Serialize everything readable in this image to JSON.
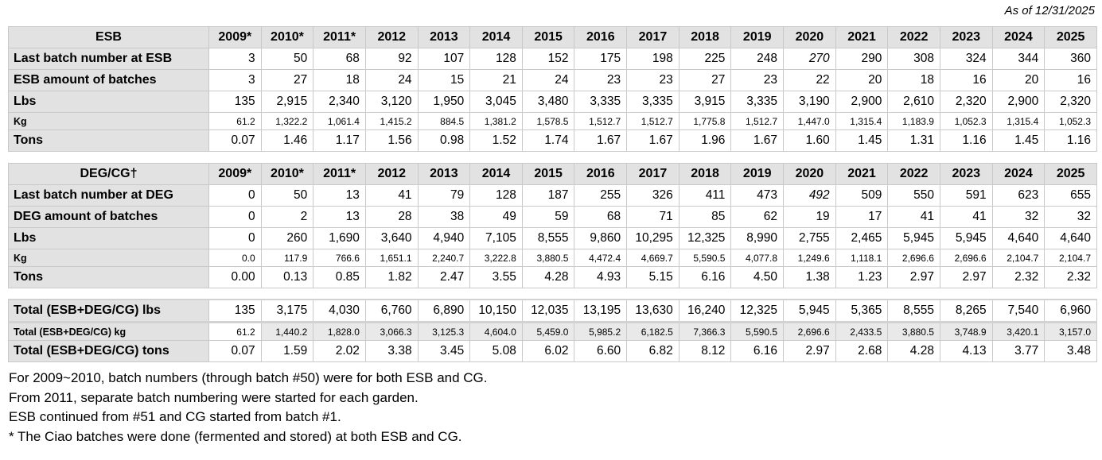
{
  "as_of": "As of 12/31/2025",
  "columns": [
    "2009*",
    "2010*",
    "2011*",
    "2012",
    "2013",
    "2014",
    "2015",
    "2016",
    "2017",
    "2018",
    "2019",
    "2020",
    "2021",
    "2022",
    "2023",
    "2024",
    "2025"
  ],
  "tables": [
    {
      "name": "esb-table",
      "title": "ESB",
      "has_year_header": true,
      "rows": [
        {
          "label": "Last batch number at ESB",
          "italic_col": 11,
          "values": [
            "3",
            "50",
            "68",
            "92",
            "107",
            "128",
            "152",
            "175",
            "198",
            "225",
            "248",
            "270",
            "290",
            "308",
            "324",
            "344",
            "360"
          ]
        },
        {
          "label": "ESB amount of batches",
          "values": [
            "3",
            "27",
            "18",
            "24",
            "15",
            "21",
            "24",
            "23",
            "23",
            "27",
            "23",
            "22",
            "20",
            "18",
            "16",
            "20",
            "16"
          ]
        },
        {
          "label": "Lbs",
          "values": [
            "135",
            "2,915",
            "2,340",
            "3,120",
            "1,950",
            "3,045",
            "3,480",
            "3,335",
            "3,335",
            "3,915",
            "3,335",
            "3,190",
            "2,900",
            "2,610",
            "2,320",
            "2,900",
            "2,320"
          ]
        },
        {
          "label": "Kg",
          "small": true,
          "values": [
            "61.2",
            "1,322.2",
            "1,061.4",
            "1,415.2",
            "884.5",
            "1,381.2",
            "1,578.5",
            "1,512.7",
            "1,512.7",
            "1,775.8",
            "1,512.7",
            "1,447.0",
            "1,315.4",
            "1,183.9",
            "1,052.3",
            "1,315.4",
            "1,052.3"
          ]
        },
        {
          "label": "Tons",
          "values": [
            "0.07",
            "1.46",
            "1.17",
            "1.56",
            "0.98",
            "1.52",
            "1.74",
            "1.67",
            "1.67",
            "1.96",
            "1.67",
            "1.60",
            "1.45",
            "1.31",
            "1.16",
            "1.45",
            "1.16"
          ]
        }
      ]
    },
    {
      "name": "deg-cg-table",
      "title": "DEG/CG†",
      "has_year_header": true,
      "rows": [
        {
          "label": "Last batch number at DEG",
          "italic_col": 11,
          "values": [
            "0",
            "50",
            "13",
            "41",
            "79",
            "128",
            "187",
            "255",
            "326",
            "411",
            "473",
            "492",
            "509",
            "550",
            "591",
            "623",
            "655"
          ]
        },
        {
          "label": "DEG amount of batches",
          "values": [
            "0",
            "2",
            "13",
            "28",
            "38",
            "49",
            "59",
            "68",
            "71",
            "85",
            "62",
            "19",
            "17",
            "41",
            "41",
            "32",
            "32"
          ]
        },
        {
          "label": "Lbs",
          "values": [
            "0",
            "260",
            "1,690",
            "3,640",
            "4,940",
            "7,105",
            "8,555",
            "9,860",
            "10,295",
            "12,325",
            "8,990",
            "2,755",
            "2,465",
            "5,945",
            "5,945",
            "4,640",
            "4,640"
          ]
        },
        {
          "label": "Kg",
          "small": true,
          "values": [
            "0.0",
            "117.9",
            "766.6",
            "1,651.1",
            "2,240.7",
            "3,222.8",
            "3,880.5",
            "4,472.4",
            "4,669.7",
            "5,590.5",
            "4,077.8",
            "1,249.6",
            "1,118.1",
            "2,696.6",
            "2,696.6",
            "2,104.7",
            "2,104.7"
          ]
        },
        {
          "label": "Tons",
          "values": [
            "0.00",
            "0.13",
            "0.85",
            "1.82",
            "2.47",
            "3.55",
            "4.28",
            "4.93",
            "5.15",
            "6.16",
            "4.50",
            "1.38",
            "1.23",
            "2.97",
            "2.97",
            "2.32",
            "2.32"
          ]
        }
      ]
    },
    {
      "name": "total-table",
      "has_year_header": false,
      "rows": [
        {
          "label": "Total (ESB+DEG/CG) lbs",
          "thick_bottom": true,
          "values": [
            "135",
            "3,175",
            "4,030",
            "6,760",
            "6,890",
            "10,150",
            "12,035",
            "13,195",
            "13,630",
            "16,240",
            "12,325",
            "5,945",
            "5,365",
            "8,555",
            "8,265",
            "7,540",
            "6,960"
          ]
        },
        {
          "label": "Total (ESB+DEG/CG) kg",
          "small": true,
          "shade_from": 1,
          "values": [
            "61.2",
            "1,440.2",
            "1,828.0",
            "3,066.3",
            "3,125.3",
            "4,604.0",
            "5,459.0",
            "5,985.2",
            "6,182.5",
            "7,366.3",
            "5,590.5",
            "2,696.6",
            "2,433.5",
            "3,880.5",
            "3,748.9",
            "3,420.1",
            "3,157.0"
          ]
        },
        {
          "label": "Total (ESB+DEG/CG) tons",
          "values": [
            "0.07",
            "1.59",
            "2.02",
            "3.38",
            "3.45",
            "5.08",
            "6.02",
            "6.60",
            "6.82",
            "8.12",
            "6.16",
            "2.97",
            "2.68",
            "4.28",
            "4.13",
            "3.77",
            "3.48"
          ]
        }
      ]
    }
  ],
  "notes": [
    "For 2009~2010, batch numbers (through batch #50) were for both ESB and CG.",
    "From 2011, separate batch numbering were started for each garden.",
    "ESB continued from #51 and CG started from batch #1.",
    "* The Ciao batches were done (fermented and stored) at both ESB and CG."
  ]
}
